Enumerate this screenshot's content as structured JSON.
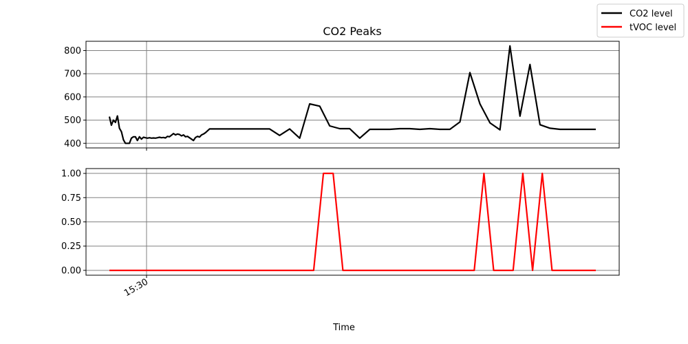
{
  "chart_data": {
    "type": "line",
    "title": "CO2 Peaks",
    "xlabel": "Time",
    "x_tick_labels": [
      "15:30"
    ],
    "legend": {
      "placement": "top-right",
      "entries": [
        {
          "label": "CO2 level",
          "color": "#000000"
        },
        {
          "label": "tVOC level",
          "color": "#ff0000"
        }
      ]
    },
    "grid": true,
    "panels": [
      {
        "ylim": [
          380,
          840
        ],
        "yticks": [
          400,
          500,
          600,
          700,
          800
        ],
        "ytick_labels": [
          "400",
          "500",
          "600",
          "700",
          "800"
        ],
        "series": [
          {
            "color": "#000000",
            "x": [
              0.0,
              0.0041,
              0.0082,
              0.0124,
              0.0165,
              0.0206,
              0.0247,
              0.0288,
              0.0329,
              0.0371,
              0.0412,
              0.0453,
              0.0494,
              0.0535,
              0.0576,
              0.0618,
              0.0659,
              0.07,
              0.0741,
              0.0782,
              0.0824,
              0.0865,
              0.0906,
              0.0947,
              0.0988,
              0.1029,
              0.1071,
              0.1112,
              0.1153,
              0.1194,
              0.1235,
              0.1276,
              0.1318,
              0.1359,
              0.14,
              0.1441,
              0.1482,
              0.1524,
              0.1565,
              0.1606,
              0.1647,
              0.1688,
              0.1729,
              0.1771,
              0.1812,
              0.1853,
              0.1894,
              0.1935,
              0.1976,
              0.2018,
              0.2059,
              0.2265,
              0.2471,
              0.2676,
              0.2882,
              0.3088,
              0.3294,
              0.35,
              0.3706,
              0.3912,
              0.4118,
              0.4324,
              0.4529,
              0.4735,
              0.4941,
              0.5147,
              0.5353,
              0.5559,
              0.5765,
              0.5971,
              0.6176,
              0.6382,
              0.6588,
              0.6794,
              0.7,
              0.7206,
              0.7412,
              0.7618,
              0.7824,
              0.8029,
              0.8235,
              0.8441,
              0.8647,
              0.8853,
              0.9059,
              0.9265,
              0.9471,
              0.9676,
              0.9882,
              1.0
            ],
            "values": [
              515,
              478,
              500,
              490,
              518,
              465,
              450,
              415,
              400,
              400,
              400,
              422,
              428,
              428,
              412,
              428,
              418,
              426,
              424,
              422,
              424,
              422,
              423,
              422,
              424,
              426,
              424,
              425,
              423,
              430,
              428,
              435,
              442,
              436,
              440,
              438,
              432,
              436,
              428,
              430,
              424,
              418,
              412,
              425,
              430,
              427,
              436,
              440,
              446,
              454,
              462,
              462,
              462,
              462,
              462,
              462,
              462,
              434,
              462,
              422,
              570,
              560,
              475,
              463,
              463,
              422,
              460,
              460,
              460,
              463,
              463,
              460,
              463,
              460,
              460,
              492,
              705,
              570,
              488,
              458,
              820,
              517,
              740,
              480,
              465,
              460,
              460,
              460,
              460,
              460
            ]
          }
        ]
      },
      {
        "ylim": [
          -0.05,
          1.05
        ],
        "yticks": [
          0,
          0.25,
          0.5,
          0.75,
          1.0
        ],
        "ytick_labels": [
          "0.00",
          "0.25",
          "0.50",
          "0.75",
          "1.00"
        ],
        "series": [
          {
            "color": "#ff0000",
            "x": [
              0.0,
              0.42,
              0.44,
              0.46,
              0.48,
              0.75,
              0.77,
              0.79,
              0.83,
              0.85,
              0.87,
              0.89,
              0.91,
              1.0
            ],
            "values": [
              0,
              0,
              1,
              1,
              0,
              0,
              1,
              0,
              0,
              1,
              0,
              1,
              0,
              0
            ]
          }
        ]
      }
    ]
  }
}
